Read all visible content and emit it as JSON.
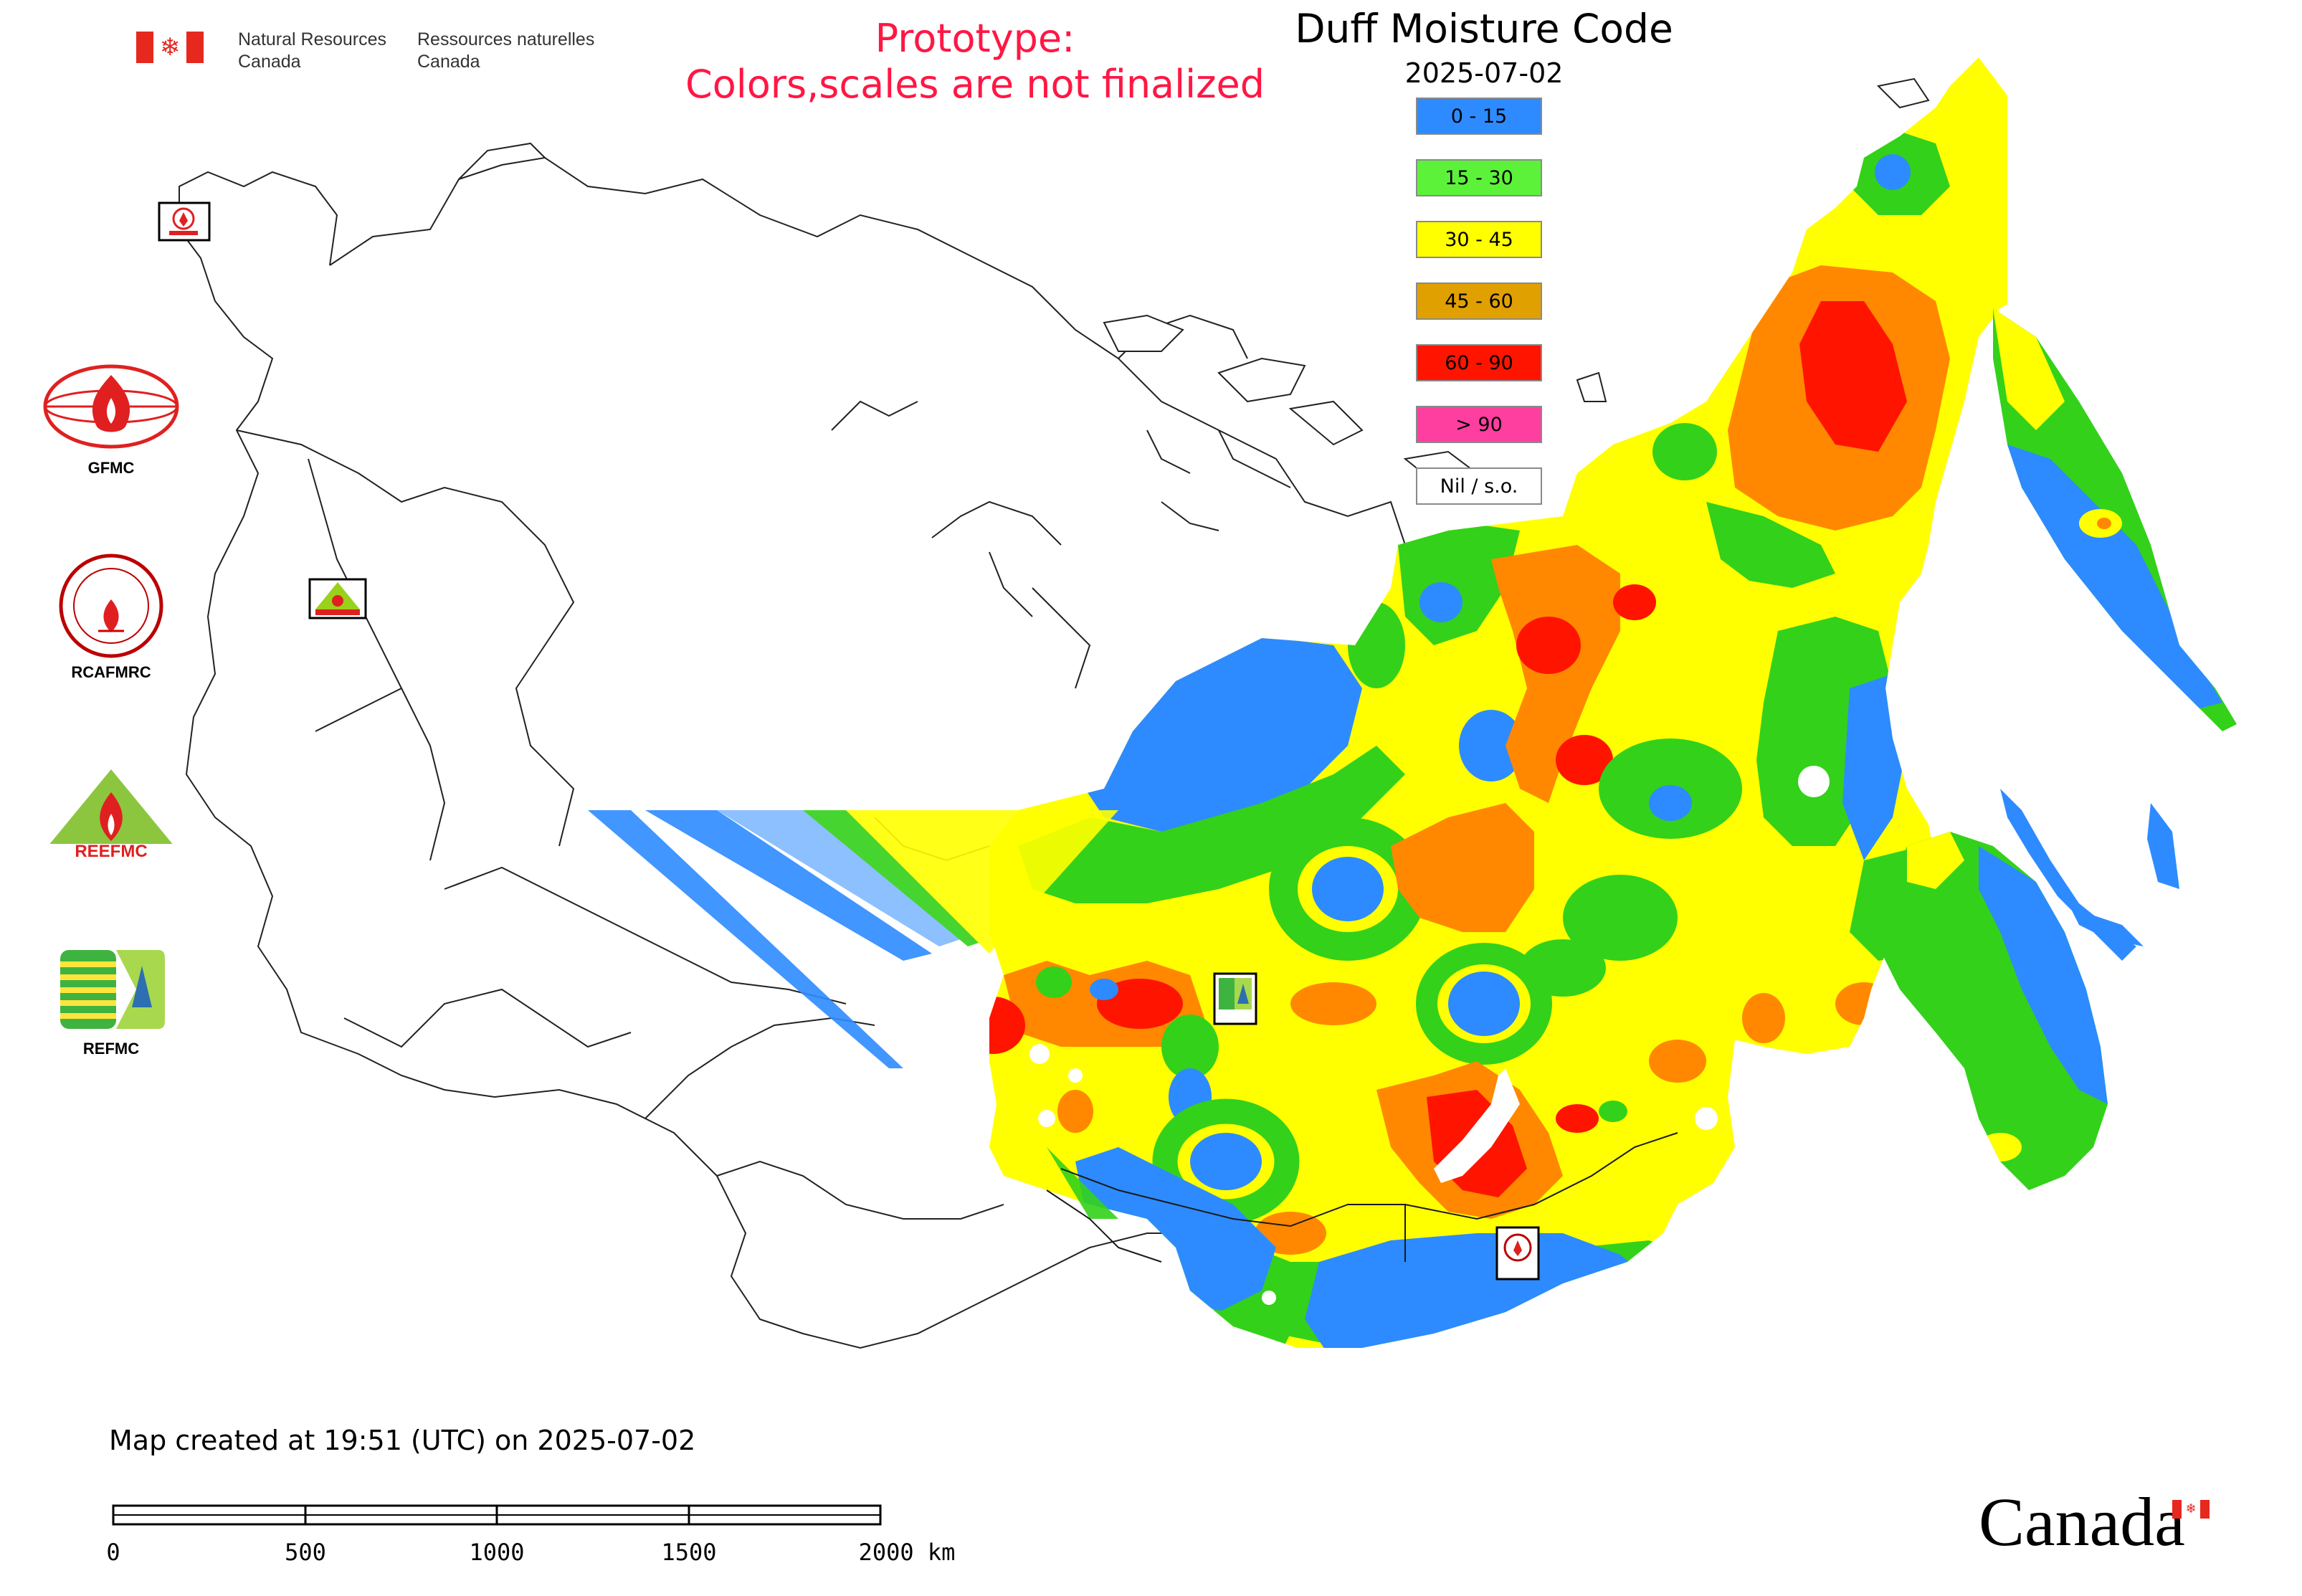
{
  "header": {
    "nrcan_en": [
      "Natural Resources",
      "Canada"
    ],
    "nrcan_fr": [
      "Ressources naturelles",
      "Canada"
    ],
    "prototype_lines": [
      "Prototype:",
      "Colors,scales are not finalized"
    ],
    "title": "Duff Moisture Code",
    "date": "2025-07-02"
  },
  "legend": [
    {
      "label": "0 - 15",
      "color": "#2d8bff"
    },
    {
      "label": "15 - 30",
      "color": "#5df23a"
    },
    {
      "label": "30 - 45",
      "color": "#ffff00"
    },
    {
      "label": "45 - 60",
      "color": "#e0a000"
    },
    {
      "label": "60 - 90",
      "color": "#ff1400"
    },
    {
      "label": "> 90",
      "color": "#ff3fa0"
    },
    {
      "label": "Nil / s.o.",
      "color": "#ffffff"
    }
  ],
  "map": {
    "region_colors": {
      "blue": "#2d8bff",
      "green": "#33d11a",
      "yellow": "#ffff00",
      "orange": "#ff8800",
      "red": "#ff1400",
      "nil": "#ffffff"
    },
    "station_icons": [
      "GFMC",
      "REEFMC",
      "REFMC",
      "RCAFMRC"
    ]
  },
  "side_logos": [
    {
      "name": "gfmc",
      "label": "GFMC"
    },
    {
      "name": "rcafmrc",
      "label": "RCAFMRC"
    },
    {
      "name": "reefmc",
      "label": "REEFMC"
    },
    {
      "name": "refmc",
      "label": "REFMC"
    }
  ],
  "footer": {
    "created": "Map created at 19:51 (UTC) on 2025-07-02",
    "scale_labels": [
      "0",
      "500",
      "1000",
      "1500",
      "2000 km"
    ],
    "canada_wordmark": "Canada"
  },
  "brand": {
    "canada_red": "#e6281f",
    "prototype_red": "#ff1744"
  }
}
